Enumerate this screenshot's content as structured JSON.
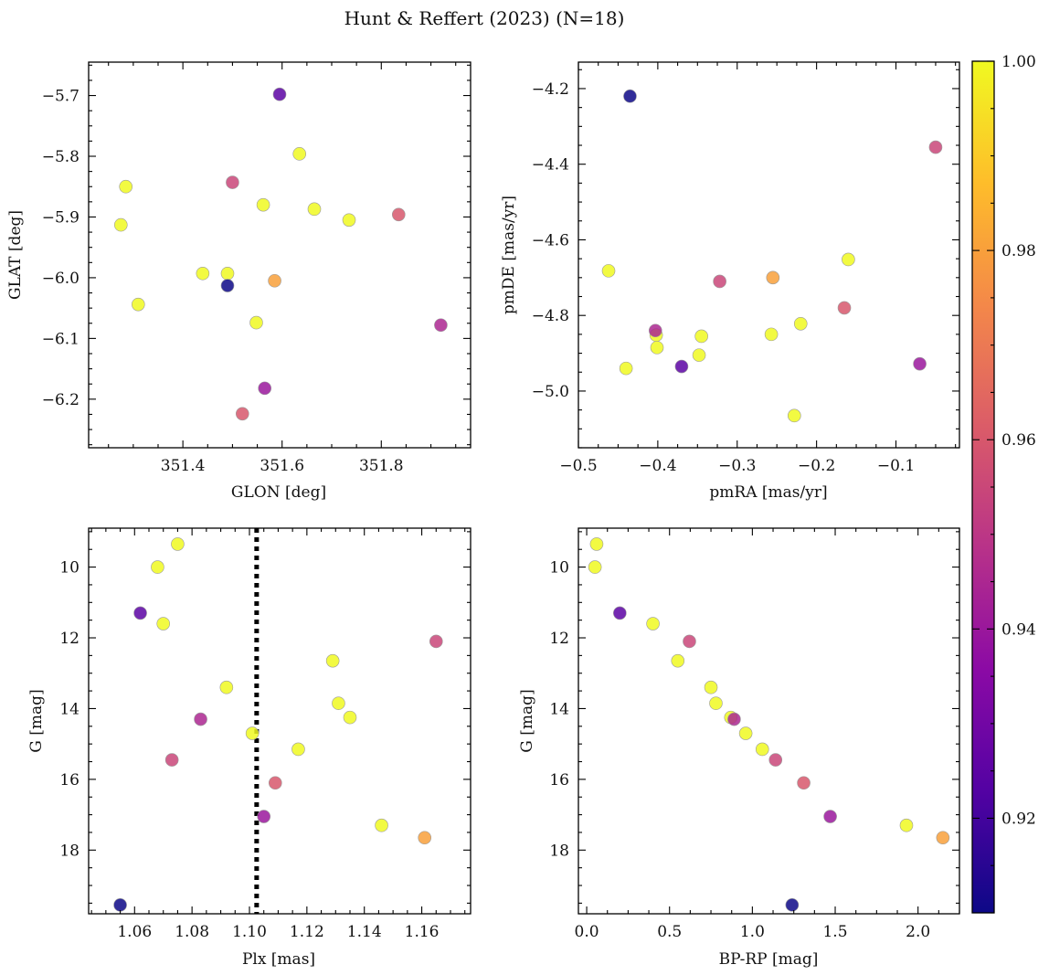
{
  "title": "Hunt & Reffert (2023) (N=18)",
  "colorbar": {
    "range": [
      0.91,
      1.0
    ],
    "ticks": [
      0.92,
      0.94,
      0.96,
      0.98,
      1.0
    ],
    "tick_labels": [
      "0.92",
      "0.94",
      "0.96",
      "0.98",
      "1.00"
    ],
    "colormap": "plasma",
    "stops": [
      "#0d0887",
      "#5302a3",
      "#8b0aa5",
      "#b83289",
      "#db5c68",
      "#f48849",
      "#febd2a",
      "#f0f921"
    ]
  },
  "chart_data": [
    {
      "type": "scatter",
      "xlabel": "GLON [deg]",
      "ylabel": "GLAT [deg]",
      "xlim": [
        351.21,
        351.98
      ],
      "ylim": [
        -6.28,
        -5.645
      ],
      "xticks": [
        351.4,
        351.6,
        351.8
      ],
      "xtick_labels": [
        "351.4",
        "351.6",
        "351.8"
      ],
      "yticks": [
        -5.7,
        -5.8,
        -5.9,
        -6.0,
        -6.1,
        -6.2
      ],
      "ytick_labels": [
        "−5.7",
        "−5.8",
        "−5.9",
        "−6.0",
        "−6.1",
        "−6.2"
      ],
      "points": [
        {
          "x": 351.595,
          "y": -5.698,
          "c": 0.925
        },
        {
          "x": 351.635,
          "y": -5.796,
          "c": 1.0
        },
        {
          "x": 351.285,
          "y": -5.85,
          "c": 1.0
        },
        {
          "x": 351.5,
          "y": -5.843,
          "c": 0.955
        },
        {
          "x": 351.562,
          "y": -5.88,
          "c": 1.0
        },
        {
          "x": 351.665,
          "y": -5.887,
          "c": 1.0
        },
        {
          "x": 351.835,
          "y": -5.896,
          "c": 0.96
        },
        {
          "x": 351.735,
          "y": -5.905,
          "c": 1.0
        },
        {
          "x": 351.275,
          "y": -5.913,
          "c": 1.0
        },
        {
          "x": 351.44,
          "y": -5.993,
          "c": 1.0
        },
        {
          "x": 351.49,
          "y": -5.993,
          "c": 1.0
        },
        {
          "x": 351.585,
          "y": -6.005,
          "c": 0.98
        },
        {
          "x": 351.49,
          "y": -6.013,
          "c": 0.91
        },
        {
          "x": 351.31,
          "y": -6.044,
          "c": 1.0
        },
        {
          "x": 351.548,
          "y": -6.074,
          "c": 1.0
        },
        {
          "x": 351.92,
          "y": -6.078,
          "c": 0.945
        },
        {
          "x": 351.565,
          "y": -6.182,
          "c": 0.94
        },
        {
          "x": 351.52,
          "y": -6.224,
          "c": 0.96
        }
      ]
    },
    {
      "type": "scatter",
      "xlabel": "pmRA [mas/yr]",
      "ylabel": "pmDE [mas/yr]",
      "xlim": [
        -0.5,
        -0.02
      ],
      "ylim": [
        -5.15,
        -4.13
      ],
      "xticks": [
        -0.5,
        -0.4,
        -0.3,
        -0.2,
        -0.1
      ],
      "xtick_labels": [
        "−0.5",
        "−0.4",
        "−0.3",
        "−0.2",
        "−0.1"
      ],
      "yticks": [
        -4.2,
        -4.4,
        -4.6,
        -4.8,
        -5.0
      ],
      "ytick_labels": [
        "−4.2",
        "−4.4",
        "−4.6",
        "−4.8",
        "−5.0"
      ],
      "points": [
        {
          "x": -0.435,
          "y": -4.22,
          "c": 0.91
        },
        {
          "x": -0.05,
          "y": -4.355,
          "c": 0.955
        },
        {
          "x": -0.16,
          "y": -4.652,
          "c": 1.0
        },
        {
          "x": -0.462,
          "y": -4.682,
          "c": 1.0
        },
        {
          "x": -0.255,
          "y": -4.7,
          "c": 0.98
        },
        {
          "x": -0.322,
          "y": -4.71,
          "c": 0.955
        },
        {
          "x": -0.165,
          "y": -4.78,
          "c": 0.96
        },
        {
          "x": -0.22,
          "y": -4.822,
          "c": 1.0
        },
        {
          "x": -0.403,
          "y": -4.84,
          "c": 0.945
        },
        {
          "x": -0.402,
          "y": -4.852,
          "c": 1.0
        },
        {
          "x": -0.257,
          "y": -4.85,
          "c": 1.0
        },
        {
          "x": -0.345,
          "y": -4.855,
          "c": 1.0
        },
        {
          "x": -0.401,
          "y": -4.885,
          "c": 1.0
        },
        {
          "x": -0.348,
          "y": -4.905,
          "c": 1.0
        },
        {
          "x": -0.07,
          "y": -4.928,
          "c": 0.94
        },
        {
          "x": -0.37,
          "y": -4.935,
          "c": 0.925
        },
        {
          "x": -0.44,
          "y": -4.94,
          "c": 1.0
        },
        {
          "x": -0.228,
          "y": -5.065,
          "c": 1.0
        }
      ]
    },
    {
      "type": "scatter",
      "xlabel": "Plx [mas]",
      "ylabel": "G [mag]",
      "xlim": [
        1.044,
        1.177
      ],
      "ylim": [
        19.8,
        8.9
      ],
      "xticks": [
        1.06,
        1.08,
        1.1,
        1.12,
        1.14,
        1.16
      ],
      "xtick_labels": [
        "1.06",
        "1.08",
        "1.10",
        "1.12",
        "1.14",
        "1.16"
      ],
      "yticks": [
        10,
        12,
        14,
        16,
        18
      ],
      "ytick_labels": [
        "10",
        "12",
        "14",
        "16",
        "18"
      ],
      "vline": {
        "x": 1.1025,
        "style": "dotted"
      },
      "points": [
        {
          "x": 1.075,
          "y": 9.35,
          "c": 1.0
        },
        {
          "x": 1.068,
          "y": 10.0,
          "c": 1.0
        },
        {
          "x": 1.062,
          "y": 11.3,
          "c": 0.925
        },
        {
          "x": 1.07,
          "y": 11.6,
          "c": 1.0
        },
        {
          "x": 1.165,
          "y": 12.1,
          "c": 0.955
        },
        {
          "x": 1.129,
          "y": 12.65,
          "c": 1.0
        },
        {
          "x": 1.092,
          "y": 13.4,
          "c": 1.0
        },
        {
          "x": 1.131,
          "y": 13.85,
          "c": 1.0
        },
        {
          "x": 1.135,
          "y": 14.25,
          "c": 1.0
        },
        {
          "x": 1.083,
          "y": 14.3,
          "c": 0.945
        },
        {
          "x": 1.101,
          "y": 14.7,
          "c": 1.0
        },
        {
          "x": 1.117,
          "y": 15.15,
          "c": 1.0
        },
        {
          "x": 1.073,
          "y": 15.45,
          "c": 0.955
        },
        {
          "x": 1.109,
          "y": 16.1,
          "c": 0.96
        },
        {
          "x": 1.105,
          "y": 17.05,
          "c": 0.94
        },
        {
          "x": 1.146,
          "y": 17.3,
          "c": 1.0
        },
        {
          "x": 1.161,
          "y": 17.65,
          "c": 0.98
        },
        {
          "x": 1.055,
          "y": 19.55,
          "c": 0.91
        }
      ]
    },
    {
      "type": "scatter",
      "xlabel": "BP-RP [mag]",
      "ylabel": "G [mag]",
      "xlim": [
        -0.05,
        2.25
      ],
      "ylim": [
        19.8,
        8.9
      ],
      "xticks": [
        0.0,
        0.5,
        1.0,
        1.5,
        2.0
      ],
      "xtick_labels": [
        "0.0",
        "0.5",
        "1.0",
        "1.5",
        "2.0"
      ],
      "yticks": [
        10,
        12,
        14,
        16,
        18
      ],
      "ytick_labels": [
        "10",
        "12",
        "14",
        "16",
        "18"
      ],
      "points": [
        {
          "x": 0.06,
          "y": 9.35,
          "c": 1.0
        },
        {
          "x": 0.05,
          "y": 10.0,
          "c": 1.0
        },
        {
          "x": 0.2,
          "y": 11.3,
          "c": 0.925
        },
        {
          "x": 0.4,
          "y": 11.6,
          "c": 1.0
        },
        {
          "x": 0.62,
          "y": 12.1,
          "c": 0.955
        },
        {
          "x": 0.55,
          "y": 12.65,
          "c": 1.0
        },
        {
          "x": 0.75,
          "y": 13.4,
          "c": 1.0
        },
        {
          "x": 0.78,
          "y": 13.85,
          "c": 1.0
        },
        {
          "x": 0.89,
          "y": 14.3,
          "c": 0.945
        },
        {
          "x": 0.87,
          "y": 14.25,
          "c": 1.0
        },
        {
          "x": 0.96,
          "y": 14.7,
          "c": 1.0
        },
        {
          "x": 1.06,
          "y": 15.15,
          "c": 1.0
        },
        {
          "x": 1.14,
          "y": 15.45,
          "c": 0.955
        },
        {
          "x": 1.31,
          "y": 16.1,
          "c": 0.96
        },
        {
          "x": 1.47,
          "y": 17.05,
          "c": 0.94
        },
        {
          "x": 1.93,
          "y": 17.3,
          "c": 1.0
        },
        {
          "x": 2.15,
          "y": 17.65,
          "c": 0.98
        },
        {
          "x": 1.24,
          "y": 19.55,
          "c": 0.91
        }
      ]
    }
  ]
}
